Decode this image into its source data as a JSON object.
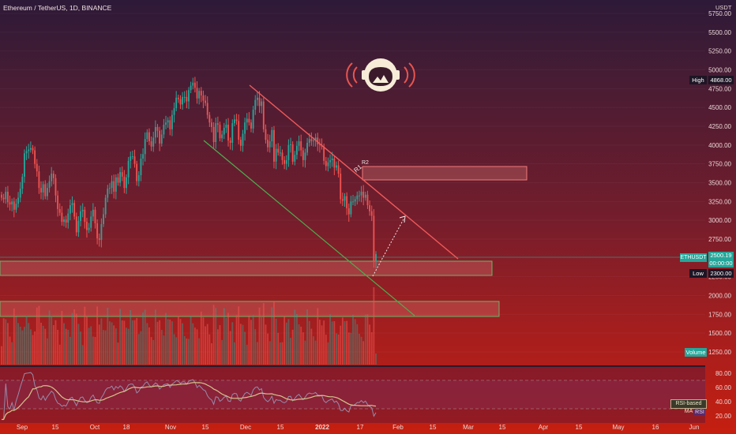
{
  "header": {
    "title": "Ethereum / TetherUS, 1D, BINANCE",
    "unit": "USDT"
  },
  "badges": {
    "high_label": "High",
    "high_value": "4868.00",
    "low_label": "Low",
    "low_value": "2300.00",
    "symbol_label": "ETHUSDT",
    "price_value": "2500.19",
    "price_sub": "00:00:00",
    "volume_label": "Volume",
    "rsi_ma_label": "RSI-based MA",
    "rsi_label": "RSI"
  },
  "annotations": {
    "r1": "R1",
    "r2": "R2"
  },
  "colors": {
    "up": "#26a69a",
    "down": "#ef5350",
    "resistance": "#f05a5a",
    "support": "#4caf50",
    "zone_fill": "#ff8a80",
    "zone_stroke": "#66bb6a",
    "rsi_line": "#9aa6c6",
    "rsi_ma": "#d4c48a"
  },
  "chart_data": {
    "type": "candlestick",
    "y_ticks": [
      "5750.00",
      "5500.00",
      "5250.00",
      "5000.00",
      "4750.00",
      "4500.00",
      "4250.00",
      "4000.00",
      "3750.00",
      "3500.00",
      "3250.00",
      "3000.00",
      "2750.00",
      "2250.00",
      "2000.00",
      "1750.00",
      "1500.00",
      "1250.00"
    ],
    "x_ticks": [
      "Sep",
      "15",
      "Oct",
      "18",
      "Nov",
      "15",
      "Dec",
      "15",
      "2022",
      "17",
      "Feb",
      "15",
      "Mar",
      "15",
      "Apr",
      "15",
      "May",
      "16",
      "Jun"
    ],
    "rsi_ticks": [
      "80.00",
      "60.00",
      "40.00",
      "20.00"
    ],
    "ylim": [
      1150,
      5850
    ],
    "rsi_ylim": [
      10,
      90
    ],
    "close": [
      3300,
      3280,
      3380,
      3240,
      3210,
      3250,
      3140,
      3220,
      3300,
      3420,
      3580,
      3890,
      3920,
      3940,
      3960,
      3930,
      3750,
      3650,
      3430,
      3370,
      3480,
      3320,
      3430,
      3520,
      3620,
      3560,
      3330,
      3150,
      3100,
      2980,
      3010,
      2970,
      3090,
      3200,
      3230,
      3050,
      2840,
      2990,
      3120,
      3140,
      2980,
      2870,
      2900,
      3050,
      3140,
      2960,
      2760,
      2740,
      2950,
      3080,
      3300,
      3420,
      3430,
      3520,
      3380,
      3570,
      3500,
      3640,
      3580,
      3430,
      3570,
      3790,
      3850,
      3850,
      3750,
      3520,
      3600,
      3820,
      3880,
      4080,
      4170,
      4050,
      3980,
      4100,
      4240,
      4190,
      4020,
      4140,
      4270,
      4300,
      4330,
      4210,
      4400,
      4490,
      4630,
      4610,
      4540,
      4640,
      4640,
      4580,
      4730,
      4790,
      4830,
      4760,
      4620,
      4720,
      4660,
      4590,
      4560,
      4400,
      4300,
      4240,
      4040,
      4290,
      4270,
      4090,
      4140,
      4230,
      4270,
      4060,
      4030,
      4290,
      4340,
      4320,
      4070,
      3990,
      4150,
      4300,
      4350,
      4300,
      4220,
      4470,
      4600,
      4630,
      4520,
      4580,
      4210,
      4070,
      3970,
      4050,
      4200,
      3780,
      3950,
      3900,
      3900,
      3800,
      3750,
      3800,
      4000,
      4010,
      3780,
      3870,
      3990,
      4050,
      3930,
      3800,
      3900,
      4030,
      4080,
      4050,
      4060,
      4100,
      4010,
      4000,
      3980,
      3790,
      3720,
      3770,
      3800,
      3820,
      3700,
      3730,
      3620,
      3280,
      3260,
      3320,
      3160,
      3080,
      3250,
      3250,
      3280,
      3330,
      3330,
      3380,
      3300,
      3340,
      3200,
      3120,
      3060,
      2450,
      2550
    ]
  }
}
